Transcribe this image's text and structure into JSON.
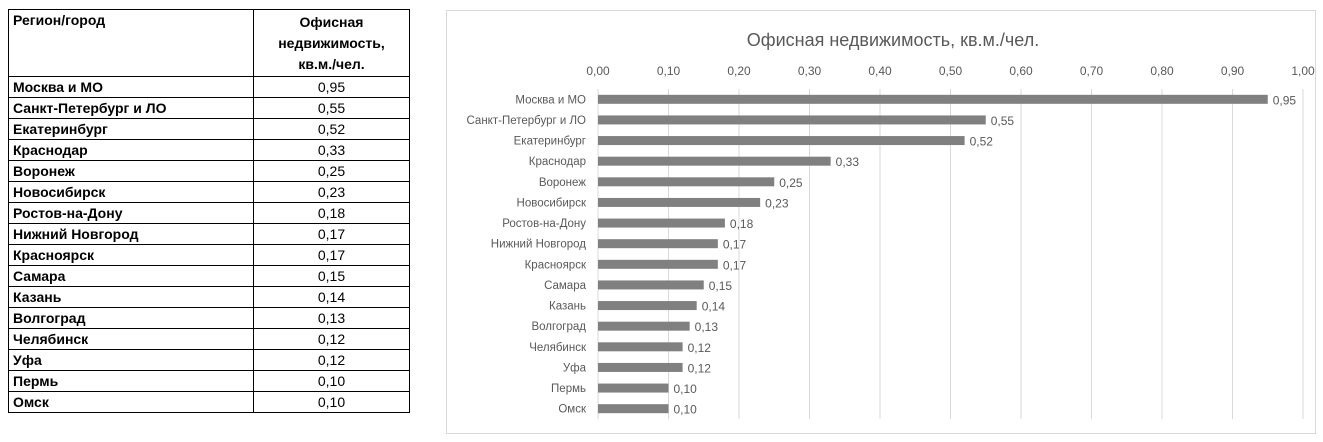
{
  "table": {
    "header": [
      "Регион/город",
      "Офисная недвижимость, кв.м./чел."
    ],
    "rows": [
      [
        "Москва и МО",
        "0,95"
      ],
      [
        "Санкт-Петербург и ЛО",
        "0,55"
      ],
      [
        "Екатеринбург",
        "0,52"
      ],
      [
        "Краснодар",
        "0,33"
      ],
      [
        "Воронеж",
        "0,25"
      ],
      [
        "Новосибирск",
        "0,23"
      ],
      [
        "Ростов-на-Дону",
        "0,18"
      ],
      [
        "Нижний Новгород",
        "0,17"
      ],
      [
        "Красноярск",
        "0,17"
      ],
      [
        "Самара",
        "0,15"
      ],
      [
        "Казань",
        "0,14"
      ],
      [
        "Волгоград",
        "0,13"
      ],
      [
        "Челябинск",
        "0,12"
      ],
      [
        "Уфа",
        "0,12"
      ],
      [
        "Пермь",
        "0,10"
      ],
      [
        "Омск",
        "0,10"
      ]
    ]
  },
  "chart_data": {
    "type": "bar",
    "orientation": "horizontal",
    "title": "Офисная недвижимость, кв.м./чел.",
    "xlabel": "",
    "ylabel": "",
    "categories": [
      "Москва и МО",
      "Санкт-Петербург и ЛО",
      "Екатеринбург",
      "Краснодар",
      "Воронеж",
      "Новосибирск",
      "Ростов-на-Дону",
      "Нижний Новгород",
      "Красноярск",
      "Самара",
      "Казань",
      "Волгоград",
      "Челябинск",
      "Уфа",
      "Пермь",
      "Омск"
    ],
    "values": [
      0.95,
      0.55,
      0.52,
      0.33,
      0.25,
      0.23,
      0.18,
      0.17,
      0.17,
      0.15,
      0.14,
      0.13,
      0.12,
      0.12,
      0.1,
      0.1
    ],
    "data_labels": [
      "0,95",
      "0,55",
      "0,52",
      "0,33",
      "0,25",
      "0,23",
      "0,18",
      "0,17",
      "0,17",
      "0,15",
      "0,14",
      "0,13",
      "0,12",
      "0,12",
      "0,10",
      "0,10"
    ],
    "xlim": [
      0,
      1.0
    ],
    "x_ticks": [
      "0,00",
      "0,10",
      "0,20",
      "0,30",
      "0,40",
      "0,50",
      "0,60",
      "0,70",
      "0,80",
      "0,90",
      "1,00"
    ],
    "x_axis_position": "top",
    "grid": true,
    "legend": false,
    "bar_color": "#808080",
    "grid_color": "#d9d9d9",
    "text_color": "#595959"
  }
}
